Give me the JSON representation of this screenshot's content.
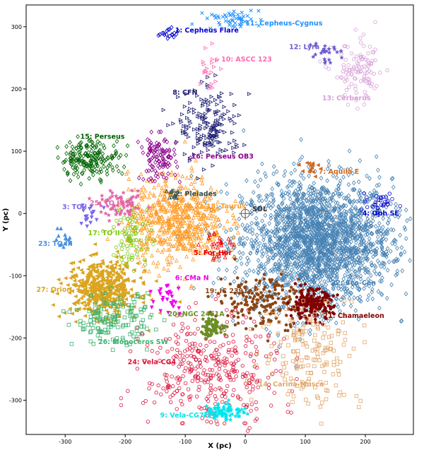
{
  "chart_data": {
    "type": "scatter",
    "xlabel": "X (pc)",
    "ylabel": "Y (pc)",
    "xlim": [
      -365,
      280
    ],
    "ylim": [
      -355,
      335
    ],
    "xticks": [
      -300,
      -200,
      -100,
      0,
      100,
      200
    ],
    "yticks": [
      -300,
      -200,
      -100,
      0,
      100,
      200,
      300
    ],
    "grid": false,
    "sun_marker": {
      "label": "SOL",
      "x": 0,
      "y": 0
    },
    "groups": [
      {
        "id": 1,
        "label": "1: Cepheus Flare",
        "color": "#0000cc",
        "marker": "diamond",
        "cx": -130,
        "cy": 290,
        "sx": 12,
        "sy": 6,
        "n": 18,
        "lx": -117,
        "ly": 291
      },
      {
        "id": 2,
        "label": "2: Pleiades",
        "color": "#2f4f4f",
        "marker": "triangle",
        "cx": -122,
        "cy": 30,
        "sx": 6,
        "sy": 6,
        "n": 14,
        "lx": -117,
        "ly": 28
      },
      {
        "id": 3,
        "label": "3: TO I",
        "color": "#7b68ee",
        "marker": "tri-down",
        "cx": -262,
        "cy": -3,
        "sx": 8,
        "sy": 10,
        "n": 18,
        "lx": -305,
        "ly": 7
      },
      {
        "id": 4,
        "label": "4: Oph SE",
        "color": "#0000cc",
        "marker": "circle",
        "cx": 218,
        "cy": 18,
        "sx": 18,
        "sy": 6,
        "n": 30,
        "lx": 195,
        "ly": -3
      },
      {
        "id": 5,
        "label": "5: For-Hor",
        "color": "#ee0000",
        "marker": "triangle",
        "cx": -45,
        "cy": -52,
        "sx": 14,
        "sy": 12,
        "n": 30,
        "lx": -86,
        "ly": -67
      },
      {
        "id": 6,
        "label": "6: CMa N",
        "color": "#ee00ee",
        "marker": "tri-down",
        "cx": -125,
        "cy": -133,
        "sx": 12,
        "sy": 14,
        "n": 26,
        "lx": -117,
        "ly": -107
      },
      {
        "id": 7,
        "label": "7: Aquila E",
        "color": "#d2691e",
        "marker": "tri-left",
        "cx": 105,
        "cy": 72,
        "sx": 8,
        "sy": 10,
        "n": 15,
        "lx": 122,
        "ly": 64
      },
      {
        "id": 8,
        "label": "8: CFN",
        "color": "#191970",
        "marker": "tri-right",
        "cx": -58,
        "cy": 140,
        "sx": 26,
        "sy": 30,
        "n": 170,
        "lx": -121,
        "ly": 191
      },
      {
        "id": 9,
        "label": "9: Vela-CG7",
        "color": "#00e5ee",
        "marker": "star",
        "cx": -35,
        "cy": -318,
        "sx": 18,
        "sy": 7,
        "n": 80,
        "lx": -142,
        "ly": -328
      },
      {
        "id": 10,
        "label": "10: ASCC 123",
        "color": "#ff69b4",
        "marker": "tri-right",
        "cx": -60,
        "cy": 238,
        "sx": 8,
        "sy": 22,
        "n": 22,
        "lx": -40,
        "ly": 244
      },
      {
        "id": 11,
        "label": "11: Cepheus-Cygnus",
        "color": "#1e90ff",
        "marker": "x",
        "cx": -20,
        "cy": 312,
        "sx": 22,
        "sy": 8,
        "n": 50,
        "lx": 0,
        "ly": 302
      },
      {
        "id": 12,
        "label": "12: Lyra",
        "color": "#6a5acd",
        "marker": "star",
        "cx": 128,
        "cy": 262,
        "sx": 12,
        "sy": 10,
        "n": 25,
        "lx": 73,
        "ly": 264
      },
      {
        "id": 13,
        "label": "13: Cerberus",
        "color": "#d8a0d8",
        "marker": "circle",
        "cx": 190,
        "cy": 225,
        "sx": 22,
        "sy": 25,
        "n": 110,
        "lx": 128,
        "ly": 182
      },
      {
        "id": 14,
        "label": "14: Carina-Musca",
        "color": "#e3a76b",
        "marker": "square",
        "cx": 110,
        "cy": -220,
        "sx": 42,
        "sy": 45,
        "n": 180,
        "lx": 22,
        "ly": -278
      },
      {
        "id": 15,
        "label": "15: Perseus",
        "color": "#006400",
        "marker": "diamond",
        "cx": -258,
        "cy": 88,
        "sx": 25,
        "sy": 15,
        "n": 190,
        "lx": -275,
        "ly": 120
      },
      {
        "id": 16,
        "label": "16: Perseus OB3",
        "color": "#8b008b",
        "marker": "diamond",
        "cx": -145,
        "cy": 88,
        "sx": 15,
        "sy": 18,
        "n": 110,
        "lx": -90,
        "ly": 88
      },
      {
        "id": 17,
        "label": "17: TO II",
        "color": "#7ac70c",
        "marker": "circle",
        "cx": -188,
        "cy": -35,
        "sx": 16,
        "sy": 26,
        "n": 90,
        "lx": -262,
        "ly": -35
      },
      {
        "id": 18,
        "label": "18: Taurus",
        "color": "#ff9922",
        "marker": "triangle",
        "cx": -115,
        "cy": -10,
        "sx": 40,
        "sy": 35,
        "n": 620,
        "lx": -65,
        "ly": 8
      },
      {
        "id": 19,
        "label": "19: IC 2391",
        "color": "#8b4513",
        "marker": "pentagon",
        "cx": 30,
        "cy": -140,
        "sx": 38,
        "sy": 22,
        "n": 190,
        "lx": -67,
        "ly": -128
      },
      {
        "id": 20,
        "label": "20: NGC 2451A",
        "color": "#6b8e23",
        "marker": "pentagon",
        "cx": -55,
        "cy": -182,
        "sx": 12,
        "sy": 8,
        "n": 60,
        "lx": -129,
        "ly": -165
      },
      {
        "id": 21,
        "label": "21: Chamaeleon",
        "color": "#800000",
        "marker": "pentagon",
        "cx": 110,
        "cy": -147,
        "sx": 18,
        "sy": 12,
        "n": 190,
        "lx": 130,
        "ly": -168
      },
      {
        "id": 22,
        "label": "22: Sco-Cen",
        "color": "#4682b4",
        "marker": "diamond",
        "cx": 120,
        "cy": -45,
        "sx": 62,
        "sy": 50,
        "n": 2200,
        "lx": 143,
        "ly": -115
      },
      {
        "id": 23,
        "label": "23: TO III",
        "color": "#4a90e2",
        "marker": "tri-up",
        "cx": -305,
        "cy": -42,
        "sx": 12,
        "sy": 8,
        "n": 14,
        "lx": -345,
        "ly": -52
      },
      {
        "id": 24,
        "label": "24: Vela-CG4",
        "color": "#dc143c",
        "marker": "circle",
        "cx": -55,
        "cy": -255,
        "sx": 55,
        "sy": 45,
        "n": 380,
        "lx": -196,
        "ly": -242
      },
      {
        "id": 25,
        "label": "25: TO IV",
        "color": "#e066a8",
        "marker": "star",
        "cx": -205,
        "cy": 12,
        "sx": 18,
        "sy": 10,
        "n": 70,
        "lx": -259,
        "ly": 13
      },
      {
        "id": 26,
        "label": "26: Monoceros SW",
        "color": "#3cb371",
        "marker": "square",
        "cx": -222,
        "cy": -170,
        "sx": 32,
        "sy": 20,
        "n": 160,
        "lx": -245,
        "ly": -210
      },
      {
        "id": 27,
        "label": "27: Orion",
        "color": "#daa520",
        "marker": "tri-left",
        "cx": -238,
        "cy": -122,
        "sx": 30,
        "sy": 22,
        "n": 480,
        "lx": -348,
        "ly": -126
      }
    ]
  }
}
